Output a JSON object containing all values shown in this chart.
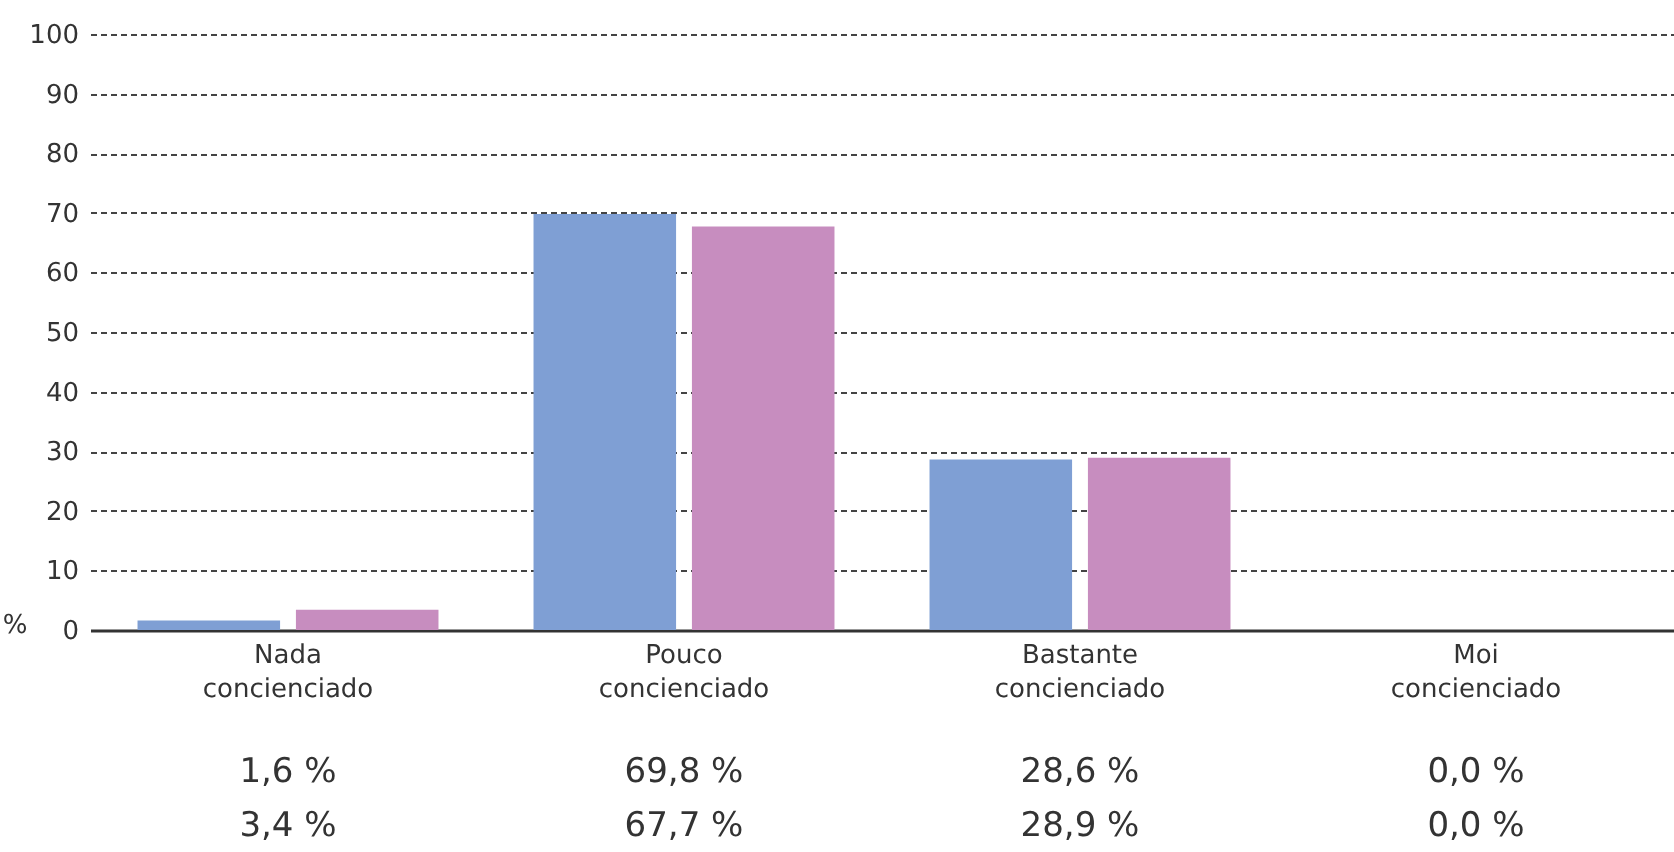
{
  "chart_data": {
    "type": "bar",
    "ylabel": "%",
    "categories": [
      "Nada concienciado",
      "Pouco concienciado",
      "Bastante concienciado",
      "Moi concienciado"
    ],
    "series": [
      {
        "color": "#7f9fd4",
        "values": [
          1.6,
          69.8,
          28.6,
          0.0
        ],
        "value_labels": [
          "1,6 %",
          "69,8 %",
          "28,6 %",
          "0,0 %"
        ]
      },
      {
        "color": "#c78dbf",
        "values": [
          3.4,
          67.7,
          28.9,
          0.0
        ],
        "value_labels": [
          "3,4 %",
          "67,7 %",
          "28,9 %",
          "0,0 %"
        ]
      }
    ],
    "ylim": [
      0,
      100
    ],
    "yticks": [
      0,
      10,
      20,
      30,
      40,
      50,
      60,
      70,
      80,
      90,
      100
    ],
    "grid": "y"
  }
}
